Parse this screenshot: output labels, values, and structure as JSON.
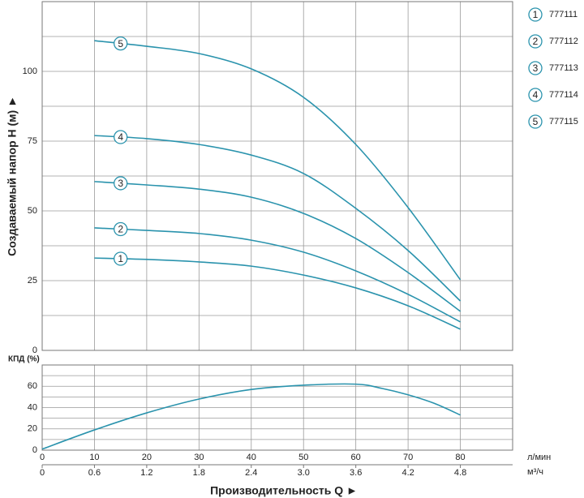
{
  "chart_data": [
    {
      "type": "line",
      "ylabel": "Создаваемый напор H (м) ►",
      "x": [
        10,
        20,
        30,
        40,
        50,
        60,
        70,
        80
      ],
      "series": [
        {
          "name": "777111",
          "label": "1",
          "color": "#2a93ad",
          "values": [
            33.1,
            32.6,
            31.7,
            30.2,
            27,
            22.4,
            16,
            7.6
          ]
        },
        {
          "name": "777112",
          "label": "2",
          "color": "#2a93ad",
          "values": [
            43.9,
            43,
            41.9,
            39.5,
            35.2,
            28.5,
            20.1,
            10.2
          ]
        },
        {
          "name": "777113",
          "label": "3",
          "color": "#2a93ad",
          "values": [
            60.5,
            59.3,
            57.8,
            54.9,
            49.1,
            40.1,
            27.9,
            14
          ]
        },
        {
          "name": "777114",
          "label": "4",
          "color": "#2a93ad",
          "values": [
            77,
            75.9,
            73.8,
            70,
            63.4,
            50.9,
            35.8,
            17.7
          ]
        },
        {
          "name": "777115",
          "label": "5",
          "color": "#2a93ad",
          "values": [
            111,
            109,
            106.4,
            100.9,
            90.7,
            73.8,
            51.2,
            25.3
          ]
        }
      ],
      "xlim": [
        0,
        90
      ],
      "ylim": [
        0,
        125
      ],
      "yticks": [
        0,
        25,
        50,
        75,
        100
      ],
      "minor_yticks": [
        12.5,
        37.5,
        62.5,
        87.5,
        112.5
      ],
      "grid": true,
      "legend": "right"
    },
    {
      "type": "line",
      "ylabel": "КПД (%)",
      "xlabel": "Производительность Q ►",
      "x": [
        0,
        10,
        20,
        30,
        40,
        50,
        60,
        65,
        70,
        75,
        80
      ],
      "series": [
        {
          "color": "#2a93ad",
          "values": [
            1,
            19,
            35,
            48,
            57,
            61,
            62,
            58,
            52,
            44,
            33
          ]
        }
      ],
      "xlim": [
        0,
        90
      ],
      "ylim": [
        0,
        80
      ],
      "xticks": [
        0,
        10,
        20,
        30,
        40,
        50,
        60,
        70,
        80
      ],
      "xunit": "л/мин",
      "x2lim": [
        0,
        5.4
      ],
      "x2ticks": [
        0,
        0.6,
        1.2,
        1.8,
        2.4,
        {
          "value": 3,
          "label": "3.0"
        },
        3.6,
        4.2,
        4.8
      ],
      "x2unit": "м³/ч",
      "yticks": [
        0,
        20,
        40,
        60
      ],
      "minor_yticks": [
        10,
        30,
        50,
        70
      ],
      "grid": true
    }
  ]
}
